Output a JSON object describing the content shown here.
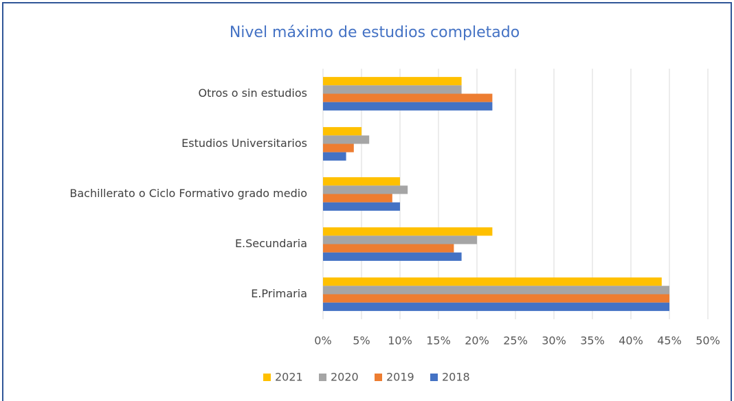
{
  "chart_data": {
    "type": "bar",
    "orientation": "horizontal",
    "title": "Nivel máximo de estudios completado",
    "categories": [
      "E.Primaria",
      "E.Secundaria",
      "Bachillerato o Ciclo Formativo grado medio",
      "Estudios Universitarios",
      "Otros o sin estudios"
    ],
    "series": [
      {
        "name": "2021",
        "color": "#ffc000",
        "values": [
          44,
          22,
          10,
          5,
          18
        ]
      },
      {
        "name": "2020",
        "color": "#a5a5a5",
        "values": [
          45,
          20,
          11,
          6,
          18
        ]
      },
      {
        "name": "2019",
        "color": "#ed7d31",
        "values": [
          45,
          17,
          9,
          4,
          22
        ]
      },
      {
        "name": "2018",
        "color": "#4472c4",
        "values": [
          45,
          18,
          10,
          3,
          22
        ]
      }
    ],
    "xlim": [
      0,
      50
    ],
    "xticks": [
      {
        "value": 0,
        "label": "0%"
      },
      {
        "value": 5,
        "label": "5%"
      },
      {
        "value": 10,
        "label": "10%"
      },
      {
        "value": 15,
        "label": "15%"
      },
      {
        "value": 20,
        "label": "20%"
      },
      {
        "value": 25,
        "label": "25%"
      },
      {
        "value": 30,
        "label": "30%"
      },
      {
        "value": 35,
        "label": "35%"
      },
      {
        "value": 40,
        "label": "40%"
      },
      {
        "value": 45,
        "label": "45%"
      },
      {
        "value": 50,
        "label": "50%"
      }
    ],
    "grid": true,
    "legend": "bottom"
  }
}
